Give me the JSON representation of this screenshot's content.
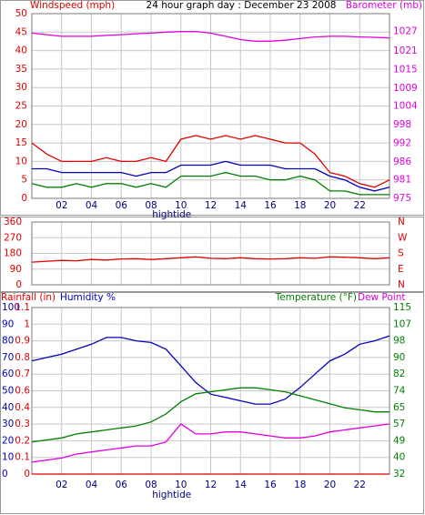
{
  "chart_data": [
    {
      "type": "line",
      "title": "24 hour graph day : December 23 2008",
      "ylabel": "Windspeed (mph)",
      "y2label": "Barometer (mb)",
      "annotation": "hightide",
      "x": [
        0,
        1,
        2,
        3,
        4,
        5,
        6,
        7,
        8,
        9,
        10,
        11,
        12,
        13,
        14,
        15,
        16,
        17,
        18,
        19,
        20,
        21,
        22,
        23,
        24
      ],
      "xlim": [
        0,
        24
      ],
      "xticks": [
        {
          "value": 2,
          "label": "02"
        },
        {
          "value": 4,
          "label": "04"
        },
        {
          "value": 6,
          "label": "06"
        },
        {
          "value": 8,
          "label": "08"
        },
        {
          "value": 10,
          "label": "10"
        },
        {
          "value": 12,
          "label": "12"
        },
        {
          "value": 14,
          "label": "14"
        },
        {
          "value": 16,
          "label": "16"
        },
        {
          "value": 18,
          "label": "18"
        },
        {
          "value": 20,
          "label": "20"
        },
        {
          "value": 22,
          "label": "22"
        }
      ],
      "ylim": [
        0,
        50
      ],
      "yticks": [
        0,
        5,
        10,
        15,
        20,
        25,
        30,
        35,
        40,
        45,
        50
      ],
      "ycolor": "#e00000",
      "y2lim": [
        975,
        1032
      ],
      "y2ticks": [
        975,
        {
          "value": 980.7,
          "label": "981"
        },
        {
          "value": 986.3,
          "label": "986"
        },
        992,
        {
          "value": 997.7,
          "label": "998"
        },
        {
          "value": 1003.5,
          "label": "1004"
        },
        1009,
        {
          "value": 1014.7,
          "label": "1015"
        },
        {
          "value": 1020.5,
          "label": "1021"
        },
        {
          "value": 1026.5,
          "label": "1027"
        }
      ],
      "y2color": "#e000e0",
      "grid": true,
      "series": [
        {
          "color": "#008000",
          "values": [
            4,
            3,
            3,
            4,
            3,
            4,
            4,
            3,
            4,
            3,
            6,
            6,
            6,
            7,
            6,
            6,
            5,
            5,
            6,
            5,
            2,
            2,
            1,
            1,
            1
          ]
        },
        {
          "color": "#e00000",
          "values": [
            15,
            12,
            10,
            10,
            10,
            11,
            10,
            10,
            11,
            10,
            16,
            17,
            16,
            17,
            16,
            17,
            16,
            15,
            15,
            12,
            7,
            6,
            4,
            3,
            5
          ]
        },
        {
          "color": "#0000c0",
          "values": [
            8,
            8,
            7,
            7,
            7,
            7,
            7,
            6,
            7,
            7,
            9,
            9,
            9,
            10,
            9,
            9,
            9,
            8,
            8,
            8,
            6,
            5,
            3,
            2,
            3
          ]
        },
        {
          "color": "#e000e0",
          "axis": "y2",
          "values": [
            1026,
            1025.5,
            1025,
            1025,
            1025,
            1025.3,
            1025.5,
            1025.8,
            1026,
            1026.3,
            1026.5,
            1026.5,
            1026,
            1025,
            1024,
            1023.5,
            1023.5,
            1023.8,
            1024.3,
            1024.8,
            1025,
            1025,
            1024.8,
            1024.7,
            1024.5
          ]
        }
      ]
    },
    {
      "type": "line",
      "x": [
        0,
        1,
        2,
        3,
        4,
        5,
        6,
        7,
        8,
        9,
        10,
        11,
        12,
        13,
        14,
        15,
        16,
        17,
        18,
        19,
        20,
        21,
        22,
        23,
        24
      ],
      "xlim": [
        0,
        24
      ],
      "xticks": [
        {
          "value": 2,
          "label": "02"
        },
        {
          "value": 4,
          "label": "04"
        },
        {
          "value": 6,
          "label": "06"
        },
        {
          "value": 8,
          "label": "08"
        },
        {
          "value": 10,
          "label": "10"
        },
        {
          "value": 12,
          "label": "12"
        },
        {
          "value": 14,
          "label": "14"
        },
        {
          "value": 16,
          "label": "16"
        },
        {
          "value": 18,
          "label": "18"
        },
        {
          "value": 20,
          "label": "20"
        },
        {
          "value": 22,
          "label": "22"
        }
      ],
      "ylim": [
        0,
        360
      ],
      "yticks": [
        0,
        90,
        180,
        270,
        360
      ],
      "ycolor": "#e00000",
      "y2lim": [
        0,
        360
      ],
      "y2ticks": [
        {
          "value": 0,
          "label": "N"
        },
        {
          "value": 90,
          "label": "E"
        },
        {
          "value": 180,
          "label": "S"
        },
        {
          "value": 270,
          "label": "W"
        },
        {
          "value": 360,
          "label": "N"
        }
      ],
      "y2color": "#e00000",
      "grid": true,
      "series": [
        {
          "color": "#e00000",
          "values": [
            130,
            135,
            140,
            138,
            145,
            142,
            148,
            150,
            145,
            150,
            155,
            160,
            152,
            150,
            155,
            150,
            148,
            150,
            155,
            152,
            160,
            158,
            155,
            150,
            155
          ]
        }
      ]
    },
    {
      "type": "line",
      "annotation": "hightide",
      "x": [
        0,
        1,
        2,
        3,
        4,
        5,
        6,
        7,
        8,
        9,
        10,
        11,
        12,
        13,
        14,
        15,
        16,
        17,
        18,
        19,
        20,
        21,
        22,
        23,
        24
      ],
      "xlim": [
        0,
        24
      ],
      "xticks": [
        {
          "value": 2,
          "label": "02"
        },
        {
          "value": 4,
          "label": "04"
        },
        {
          "value": 6,
          "label": "06"
        },
        {
          "value": 8,
          "label": "08"
        },
        {
          "value": 10,
          "label": "10"
        },
        {
          "value": 12,
          "label": "12"
        },
        {
          "value": 14,
          "label": "14"
        },
        {
          "value": 16,
          "label": "16"
        },
        {
          "value": 18,
          "label": "18"
        },
        {
          "value": 20,
          "label": "20"
        },
        {
          "value": 22,
          "label": "22"
        }
      ],
      "ylim": [
        0,
        100
      ],
      "yticks": [
        0,
        10,
        20,
        30,
        40,
        50,
        60,
        70,
        80,
        90,
        100
      ],
      "ycolor": "#0000c0",
      "y3lim": [
        0,
        1.1
      ],
      "y3ticks": [
        0,
        {
          "value": 0.11,
          "label": "0.1"
        },
        {
          "value": 0.22,
          "label": "0.2"
        },
        {
          "value": 0.33,
          "label": "0.3"
        },
        {
          "value": 0.44,
          "label": "0.4"
        },
        {
          "value": 0.55,
          "label": "0.6"
        },
        {
          "value": 0.66,
          "label": "0.7"
        },
        {
          "value": 0.77,
          "label": "0.8"
        },
        {
          "value": 0.88,
          "label": "0.9"
        },
        {
          "value": 0.99,
          "label": "1"
        },
        1.1
      ],
      "y3color": "#e00000",
      "y2lim": [
        32,
        115
      ],
      "y2ticks": [
        32,
        {
          "value": 40.3,
          "label": "40"
        },
        {
          "value": 48.6,
          "label": "49"
        },
        {
          "value": 56.9,
          "label": "57"
        },
        {
          "value": 65.2,
          "label": "65"
        },
        {
          "value": 73.5,
          "label": "74"
        },
        {
          "value": 81.8,
          "label": "82"
        },
        {
          "value": 90.1,
          "label": "90"
        },
        {
          "value": 98.4,
          "label": "98"
        },
        {
          "value": 106.7,
          "label": "107"
        },
        115
      ],
      "y2color": "#008000",
      "grid": true,
      "series": [
        {
          "name": "Rainfall (in)",
          "color": "#e00000",
          "axis": "y3",
          "values": [
            0,
            0,
            0,
            0,
            0,
            0,
            0,
            0,
            0,
            0,
            0,
            0,
            0,
            0,
            0,
            0,
            0,
            0,
            0,
            0,
            0,
            0,
            0,
            0,
            0
          ]
        },
        {
          "name": "Humidity %",
          "color": "#0000c0",
          "values": [
            68,
            70,
            72,
            75,
            78,
            82,
            82,
            80,
            79,
            75,
            65,
            55,
            48,
            46,
            44,
            42,
            42,
            45,
            52,
            60,
            68,
            72,
            78,
            80,
            83
          ]
        },
        {
          "name": "Temperature (°F)",
          "color": "#008000",
          "axis": "y2",
          "values": [
            48,
            49,
            50,
            52,
            53,
            54,
            55,
            56,
            58,
            62,
            68,
            72,
            73,
            74,
            75,
            75,
            74,
            73,
            71,
            69,
            67,
            65,
            64,
            63,
            63
          ]
        },
        {
          "name": "Dew Point",
          "color": "#e000e0",
          "axis": "y2",
          "values": [
            38,
            39,
            40,
            42,
            43,
            44,
            45,
            46,
            46,
            48,
            57,
            52,
            52,
            53,
            53,
            52,
            51,
            50,
            50,
            51,
            53,
            54,
            55,
            56,
            57
          ]
        }
      ]
    }
  ]
}
